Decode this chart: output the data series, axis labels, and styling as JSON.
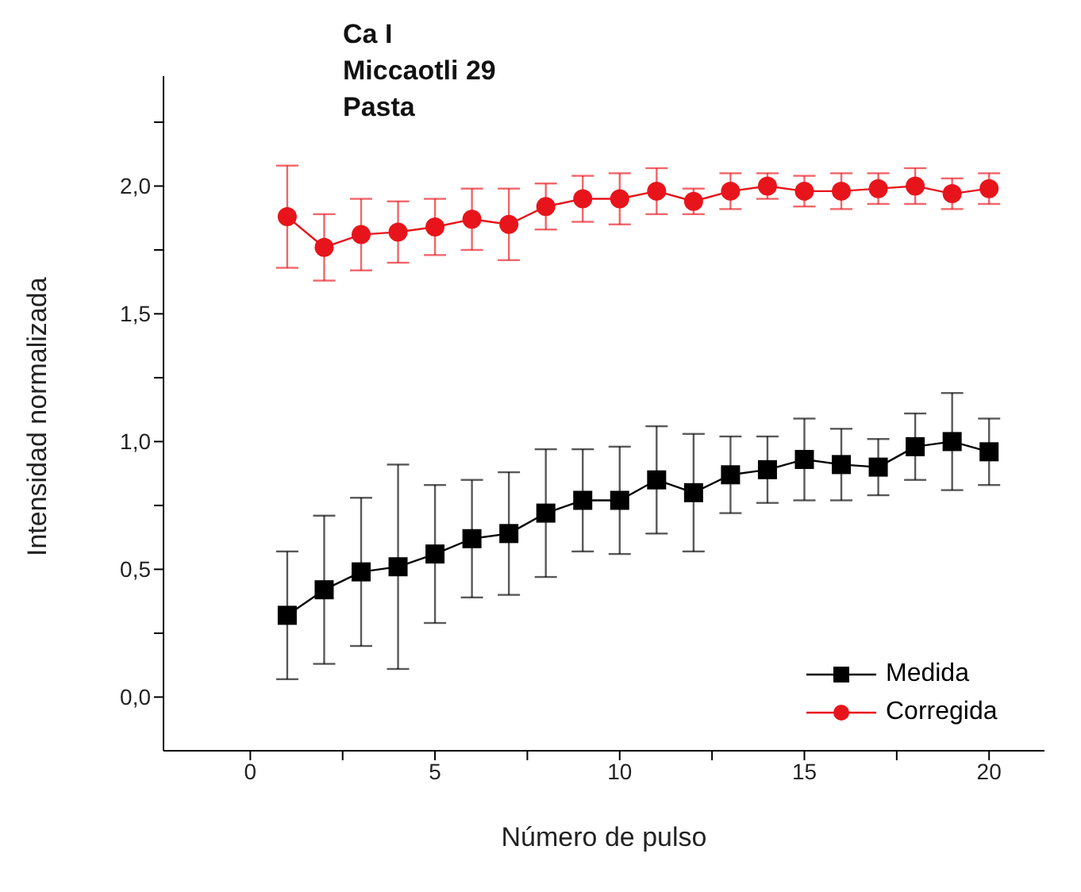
{
  "chart_data": {
    "type": "line",
    "title": "Ca I\nMiccaotli 29\nPasta",
    "xlabel": "Número de pulso",
    "ylabel": "Intensidad normalizada",
    "x": [
      1,
      2,
      3,
      4,
      5,
      6,
      7,
      8,
      9,
      10,
      11,
      12,
      13,
      14,
      15,
      16,
      17,
      18,
      19,
      20
    ],
    "series": [
      {
        "name": "Medida",
        "color": "#000000",
        "marker": "square",
        "values": [
          0.32,
          0.42,
          0.49,
          0.51,
          0.56,
          0.62,
          0.64,
          0.72,
          0.77,
          0.77,
          0.85,
          0.8,
          0.87,
          0.89,
          0.93,
          0.91,
          0.9,
          0.98,
          1.0,
          0.96
        ],
        "errors": [
          0.25,
          0.29,
          0.29,
          0.4,
          0.27,
          0.23,
          0.24,
          0.25,
          0.2,
          0.21,
          0.21,
          0.23,
          0.15,
          0.13,
          0.16,
          0.14,
          0.11,
          0.13,
          0.19,
          0.13
        ]
      },
      {
        "name": "Corregida",
        "color": "#e8141b",
        "marker": "circle",
        "values": [
          1.88,
          1.76,
          1.81,
          1.82,
          1.84,
          1.87,
          1.85,
          1.92,
          1.95,
          1.95,
          1.98,
          1.94,
          1.98,
          2.0,
          1.98,
          1.98,
          1.99,
          2.0,
          1.97,
          1.99
        ],
        "errors": [
          0.2,
          0.13,
          0.14,
          0.12,
          0.11,
          0.12,
          0.14,
          0.09,
          0.09,
          0.1,
          0.09,
          0.05,
          0.07,
          0.05,
          0.06,
          0.07,
          0.06,
          0.07,
          0.06,
          0.06
        ]
      }
    ],
    "xlim": [
      -2.35,
      21.5
    ],
    "xticks": [
      0,
      {
        "value": 2.5,
        "label": null
      },
      5,
      {
        "value": 7.5,
        "label": null
      },
      10,
      {
        "value": 12.5,
        "label": null
      },
      15,
      {
        "value": 17.5,
        "label": null
      },
      20
    ],
    "ylim": [
      -0.21,
      2.43
    ],
    "yticks": [
      {
        "value": 0,
        "label": "0,0"
      },
      {
        "value": 0.25,
        "label": null
      },
      {
        "value": 0.5,
        "label": "0,5"
      },
      {
        "value": 0.75,
        "label": null
      },
      {
        "value": 1,
        "label": "1,0"
      },
      {
        "value": 1.25,
        "label": null
      },
      {
        "value": 1.5,
        "label": "1,5"
      },
      {
        "value": 1.75,
        "label": null
      },
      {
        "value": 2,
        "label": "2,0"
      },
      {
        "value": 2.25,
        "label": null
      }
    ],
    "legend": "bottom right",
    "grid": false
  }
}
